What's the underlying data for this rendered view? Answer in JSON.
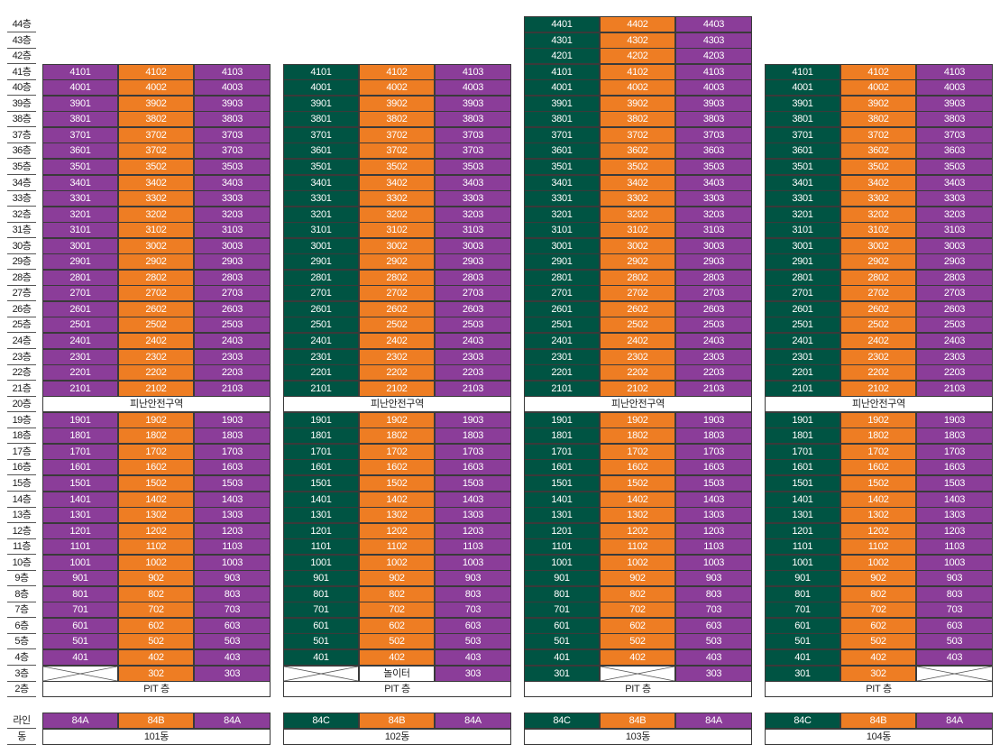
{
  "floors": [
    "44층",
    "43층",
    "42층",
    "41층",
    "40층",
    "39층",
    "38층",
    "37층",
    "36층",
    "35층",
    "34층",
    "33층",
    "32층",
    "31층",
    "30층",
    "29층",
    "28층",
    "27층",
    "26층",
    "25층",
    "24층",
    "23층",
    "22층",
    "21층",
    "20층",
    "19층",
    "18층",
    "17층",
    "16층",
    "15층",
    "14층",
    "13층",
    "12층",
    "11층",
    "10층",
    "9층",
    "8층",
    "7층",
    "6층",
    "5층",
    "4층",
    "3층",
    "2층"
  ],
  "footer_labels": {
    "line": "라인",
    "dong": "동"
  },
  "refuge_label": "피난안전구역",
  "pit_label": "PIT 층",
  "colors": {
    "purple": "#8b3d99",
    "orange": "#ee7d23",
    "green": "#005443"
  },
  "buildings": [
    {
      "name": "101동",
      "top_floor": 41,
      "line_colors": [
        "purple",
        "orange",
        "purple"
      ],
      "line_types": [
        "84A",
        "84B",
        "84A"
      ],
      "floor3": [
        {
          "type": "empty"
        },
        {
          "type": "unit",
          "label": "302"
        },
        {
          "type": "unit",
          "label": "303"
        }
      ],
      "overrides": {
        "36": [
          "3601",
          "3702",
          "3703"
        ]
      }
    },
    {
      "name": "102동",
      "top_floor": 41,
      "line_colors": [
        "green",
        "orange",
        "purple"
      ],
      "line_types": [
        "84C",
        "84B",
        "84A"
      ],
      "floor3": [
        {
          "type": "empty"
        },
        {
          "type": "text",
          "label": "놀이터"
        },
        {
          "type": "unit",
          "label": "303"
        }
      ],
      "overrides": {
        "36": [
          "3601",
          "3702",
          "3703"
        ]
      }
    },
    {
      "name": "103동",
      "top_floor": 44,
      "line_colors": [
        "green",
        "orange",
        "purple"
      ],
      "line_types": [
        "84C",
        "84B",
        "84A"
      ],
      "floor3": [
        {
          "type": "unit",
          "label": "301"
        },
        {
          "type": "empty"
        },
        {
          "type": "unit",
          "label": "303"
        }
      ],
      "overrides": {}
    },
    {
      "name": "104동",
      "top_floor": 41,
      "line_colors": [
        "green",
        "orange",
        "purple"
      ],
      "line_types": [
        "84C",
        "84B",
        "84A"
      ],
      "floor3": [
        {
          "type": "unit",
          "label": "301"
        },
        {
          "type": "unit",
          "label": "302"
        },
        {
          "type": "empty"
        }
      ],
      "overrides": {}
    }
  ]
}
